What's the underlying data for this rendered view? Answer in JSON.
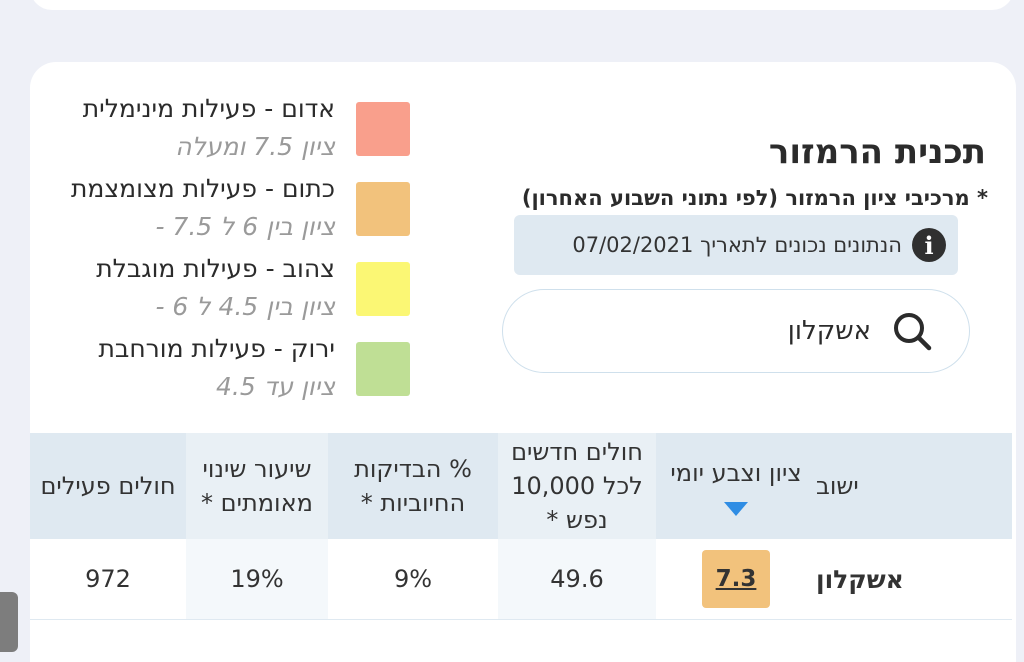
{
  "header": {
    "title": "תכנית הרמזור",
    "subtitle": "* מרכיבי ציון הרמזור (לפי נתוני השבוע האחרון)",
    "date_note": "הנתונים נכונים לתאריך 07/02/2021"
  },
  "search": {
    "value": "אשקלון"
  },
  "legend": [
    {
      "label": "אדום - פעילות מינימלית",
      "sub": "ציון 7.5 ומעלה",
      "color": "#f99f8c"
    },
    {
      "label": "כתום - פעילות מצומצמת",
      "sub": "ציון בין 6 ל 7.5 -",
      "color": "#f2c27c"
    },
    {
      "label": "צהוב - פעילות מוגבלת",
      "sub": "ציון בין 4.5 ל 6 -",
      "color": "#fbf774"
    },
    {
      "label": "ירוק - פעילות מורחבת",
      "sub": "ציון עד 4.5",
      "color": "#bfdf95"
    }
  ],
  "table": {
    "headers": {
      "town": "ישוב",
      "score": "ציון וצבע יומי",
      "new_cases": "חולים חדשים לכל 10,000 נפש *",
      "positive": "% הבדיקות החיוביות *",
      "change": "שיעור שינוי מאומתים *",
      "active": "חולים פעילים"
    },
    "rows": [
      {
        "town": "אשקלון",
        "score": "7.3",
        "new_cases": "49.6",
        "positive": "9%",
        "change": "19%",
        "active": "972"
      }
    ]
  },
  "colors": {
    "header_bg": "#dfe9f1",
    "score_orange": "#f2c27c",
    "sort_arrow": "#2f8de4"
  }
}
